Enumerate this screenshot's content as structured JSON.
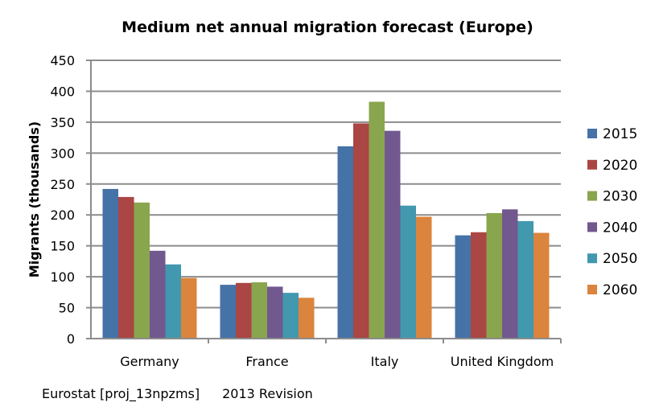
{
  "chart_data": {
    "type": "bar",
    "title": "Medium net annual migration forecast (Europe)",
    "xlabel": "",
    "ylabel": "Migrants (thousands)",
    "ylim": [
      0,
      450
    ],
    "yticks": [
      0,
      50,
      100,
      150,
      200,
      250,
      300,
      350,
      400,
      450
    ],
    "grid": true,
    "legend_position": "right",
    "categories": [
      "Germany",
      "France",
      "Italy",
      "United Kingdom"
    ],
    "series": [
      {
        "name": "2015",
        "color": "#4572a7",
        "values": [
          242,
          87,
          311,
          167
        ]
      },
      {
        "name": "2020",
        "color": "#aa4643",
        "values": [
          229,
          90,
          348,
          172
        ]
      },
      {
        "name": "2030",
        "color": "#89a54e",
        "values": [
          220,
          91,
          383,
          203
        ]
      },
      {
        "name": "2040",
        "color": "#71588f",
        "values": [
          142,
          84,
          336,
          209
        ]
      },
      {
        "name": "2050",
        "color": "#4198af",
        "values": [
          120,
          74,
          215,
          190
        ]
      },
      {
        "name": "2060",
        "color": "#db843d",
        "values": [
          98,
          66,
          197,
          171
        ]
      }
    ]
  },
  "footer": {
    "source": "Eurostat [proj_13npzms]",
    "revision": "2013 Revision"
  }
}
